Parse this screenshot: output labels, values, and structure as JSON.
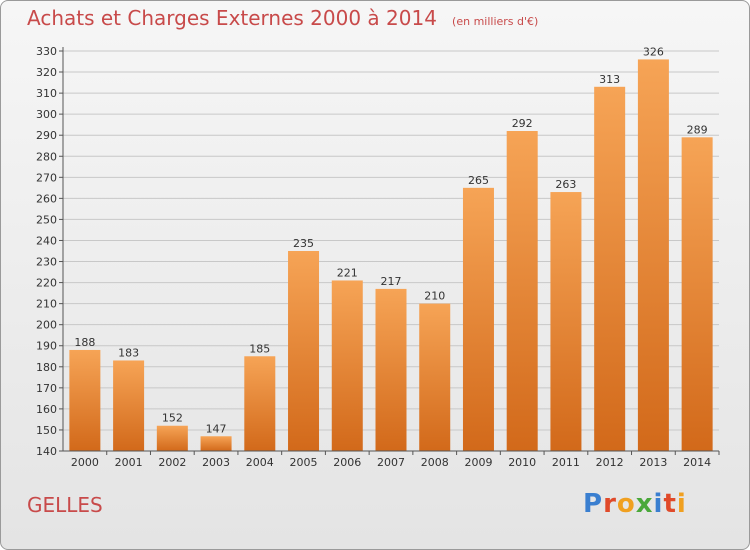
{
  "header": {
    "title": "Achats et Charges Externes 2000 à 2014",
    "unit": "(en milliers d'€)"
  },
  "footer": {
    "commune": "GELLES",
    "logo_text": "Proxiti"
  },
  "colors": {
    "bar_top": "#f6a456",
    "bar_bottom": "#d2691a",
    "title": "#c84a4a",
    "grid": "#c8c8c8"
  },
  "chart_data": {
    "type": "bar",
    "title": "Achats et Charges Externes 2000 à 2014",
    "subtitle": "(en milliers d'€)",
    "categories": [
      "2000",
      "2001",
      "2002",
      "2003",
      "2004",
      "2005",
      "2006",
      "2007",
      "2008",
      "2009",
      "2010",
      "2011",
      "2012",
      "2013",
      "2014"
    ],
    "values": [
      188,
      183,
      152,
      147,
      185,
      235,
      221,
      217,
      210,
      265,
      292,
      263,
      313,
      326,
      289
    ],
    "ylim": [
      140,
      330
    ],
    "ytick_step": 10,
    "grid": true,
    "data_labels": true
  }
}
